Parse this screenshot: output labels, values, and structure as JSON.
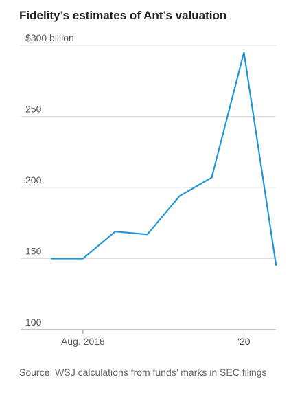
{
  "chart_data": {
    "type": "line",
    "title": "Fidelity’s estimates of Ant’s valuation",
    "source": "Source: WSJ calculations from funds’ marks in SEC filings",
    "categories": [
      null,
      "Aug. 2018",
      null,
      null,
      null,
      null,
      "'20",
      null
    ],
    "series": [
      {
        "name": "Valuation",
        "color": "#1f97d4",
        "values": [
          150,
          150,
          169,
          167,
          194,
          207,
          295,
          145
        ]
      }
    ],
    "ylim": [
      100,
      300
    ],
    "yticks": [
      100,
      150,
      200,
      250,
      {
        "value": 300,
        "label": "$300 billion"
      }
    ],
    "grid": true
  }
}
